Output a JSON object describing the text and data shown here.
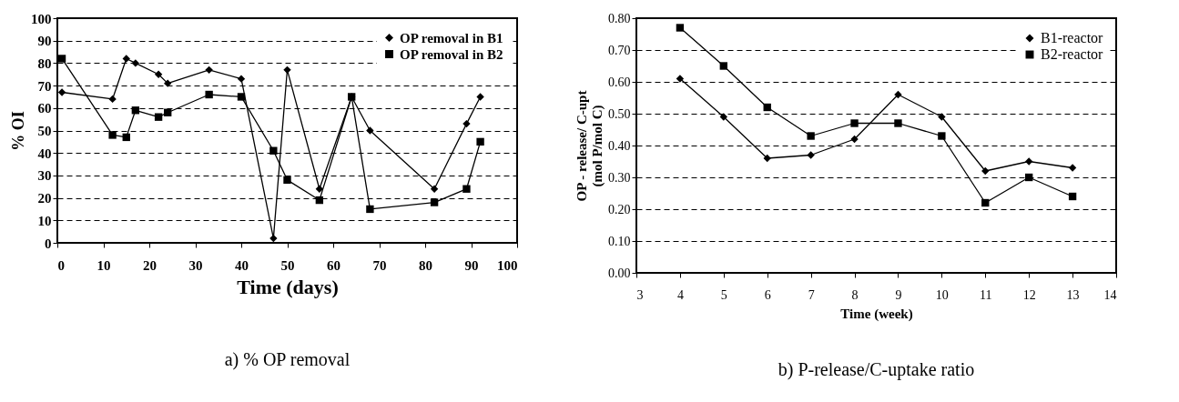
{
  "chart_data": [
    {
      "type": "line",
      "title": "a) % OP removal",
      "xlabel": "Time (days)",
      "ylabel": "% OI",
      "xlim": [
        0,
        100
      ],
      "xticks": [
        0,
        10,
        20,
        30,
        40,
        50,
        60,
        70,
        80,
        90,
        100
      ],
      "ylim": [
        0,
        100
      ],
      "yticks": [
        0,
        10,
        20,
        30,
        40,
        50,
        60,
        70,
        80,
        90,
        100
      ],
      "grid": "y",
      "legend": "top right",
      "line_style": "solid",
      "series": [
        {
          "name": "OP removal in B1",
          "color": "#000000",
          "marker": "diamond",
          "x": [
            1,
            12,
            15,
            17,
            22,
            24,
            33,
            40,
            47,
            50,
            57,
            64,
            68,
            82,
            89,
            92
          ],
          "values": [
            67,
            64,
            82,
            80,
            75,
            71,
            77,
            73,
            2,
            77,
            24,
            65,
            50,
            24,
            53,
            65
          ]
        },
        {
          "name": "OP removal in B2",
          "color": "#000000",
          "marker": "square",
          "x": [
            1,
            12,
            15,
            17,
            22,
            24,
            33,
            40,
            47,
            50,
            57,
            64,
            68,
            82,
            89,
            92
          ],
          "values": [
            82,
            48,
            47,
            59,
            56,
            58,
            66,
            65,
            41,
            28,
            19,
            65,
            15,
            18,
            24,
            45
          ]
        }
      ]
    },
    {
      "type": "line",
      "title": "b) P-release/C-uptake ratio",
      "xlabel": "Time (week)",
      "ylabel": "OP - release/ C-upt\n(mol P/mol C)",
      "xlim": [
        3,
        14
      ],
      "xticks": [
        3,
        4,
        5,
        6,
        7,
        8,
        9,
        10,
        11,
        12,
        13,
        14
      ],
      "ylim": [
        0,
        0.8
      ],
      "yticks": [
        {
          "value": 0,
          "label": "0.00"
        },
        {
          "value": 0.1,
          "label": "0.10"
        },
        {
          "value": 0.2,
          "label": "0.20"
        },
        {
          "value": 0.3,
          "label": "0.30"
        },
        {
          "value": 0.4,
          "label": "0.40"
        },
        {
          "value": 0.5,
          "label": "0.50"
        },
        {
          "value": 0.6,
          "label": "0.60"
        },
        {
          "value": 0.7,
          "label": "0.70"
        },
        {
          "value": 0.8,
          "label": "0.80"
        }
      ],
      "grid": "y",
      "legend": "top right",
      "line_style": "solid",
      "series": [
        {
          "name": "B1-reactor",
          "color": "#000000",
          "marker": "diamond",
          "x": [
            4,
            5,
            6,
            7,
            8,
            9,
            10,
            11,
            12,
            13
          ],
          "values": [
            0.61,
            0.49,
            0.36,
            0.37,
            0.42,
            0.56,
            0.49,
            0.32,
            0.35,
            0.33
          ]
        },
        {
          "name": "B2-reactor",
          "color": "#000000",
          "marker": "square",
          "x": [
            4,
            5,
            6,
            7,
            8,
            9,
            10,
            11,
            12,
            13
          ],
          "values": [
            0.77,
            0.65,
            0.52,
            0.43,
            0.47,
            0.47,
            0.43,
            0.22,
            0.3,
            0.24
          ]
        }
      ]
    }
  ]
}
